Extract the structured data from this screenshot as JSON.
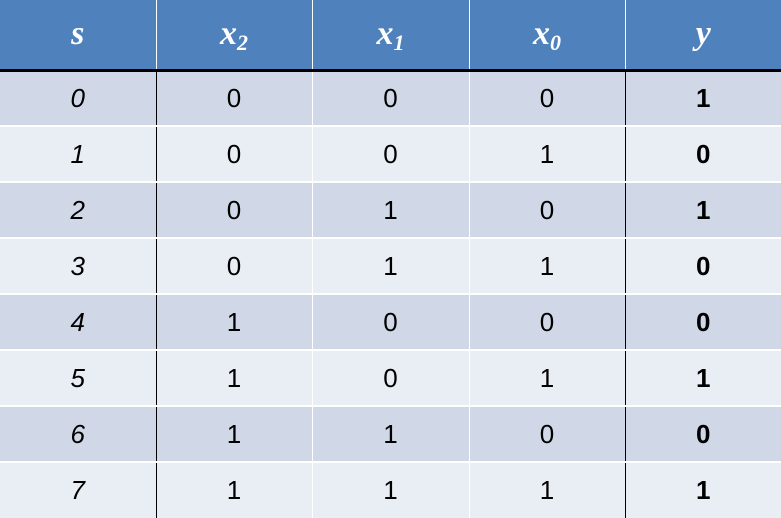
{
  "table": {
    "headers": [
      {
        "base": "s",
        "sub": ""
      },
      {
        "base": "x",
        "sub": "2"
      },
      {
        "base": "x",
        "sub": "1"
      },
      {
        "base": "x",
        "sub": "0"
      },
      {
        "base": "y",
        "sub": ""
      }
    ],
    "rows": [
      [
        "0",
        "0",
        "0",
        "0",
        "1"
      ],
      [
        "1",
        "0",
        "0",
        "1",
        "0"
      ],
      [
        "2",
        "0",
        "1",
        "0",
        "1"
      ],
      [
        "3",
        "0",
        "1",
        "1",
        "0"
      ],
      [
        "4",
        "1",
        "0",
        "0",
        "0"
      ],
      [
        "5",
        "1",
        "0",
        "1",
        "1"
      ],
      [
        "6",
        "1",
        "1",
        "0",
        "0"
      ],
      [
        "7",
        "1",
        "1",
        "1",
        "1"
      ]
    ]
  },
  "colors": {
    "header_bg": "#4f81bd",
    "row_band_dark": "#d0d8e8",
    "row_band_light": "#e9edf4"
  }
}
